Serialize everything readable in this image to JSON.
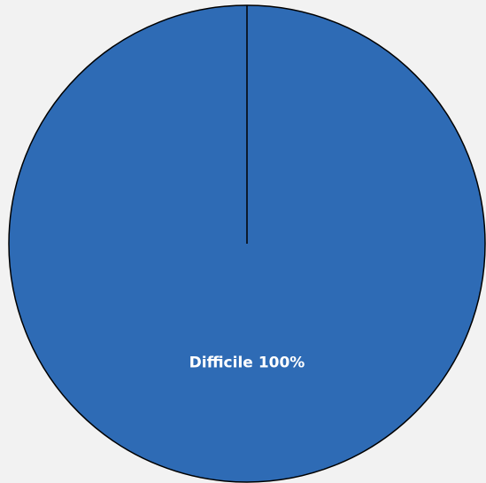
{
  "chart_data": {
    "type": "pie",
    "categories": [
      "Difficile"
    ],
    "values": [
      100
    ],
    "value_labels": [
      "100%"
    ],
    "colors": [
      "#2e6bb5"
    ]
  }
}
